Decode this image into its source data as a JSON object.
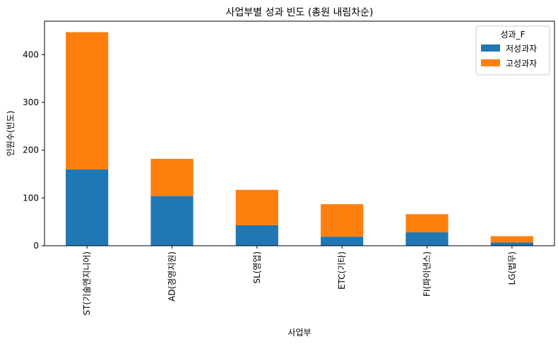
{
  "chart_data": {
    "type": "bar",
    "stacked": true,
    "title": "사업부별 성과 빈도 (총원 내림차순)",
    "xlabel": "사업부",
    "ylabel": "인원수(빈도)",
    "categories": [
      "ST(기술엔지니어)",
      "AD(경영지원)",
      "SL(영업)",
      "ETC(기타)",
      "FI(파이낸스)",
      "LG(법무)"
    ],
    "series": [
      {
        "name": "저성과자",
        "color": "#1f77b4",
        "values": [
          160,
          104,
          43,
          19,
          28,
          7
        ]
      },
      {
        "name": "고성과자",
        "color": "#ff7f0e",
        "values": [
          287,
          78,
          74,
          68,
          38,
          13
        ]
      }
    ],
    "ylim": [
      0,
      470
    ],
    "yticks": [
      0,
      100,
      200,
      300,
      400
    ],
    "grid": false,
    "legend": {
      "title": "성과_F",
      "placement": "top-right"
    }
  }
}
